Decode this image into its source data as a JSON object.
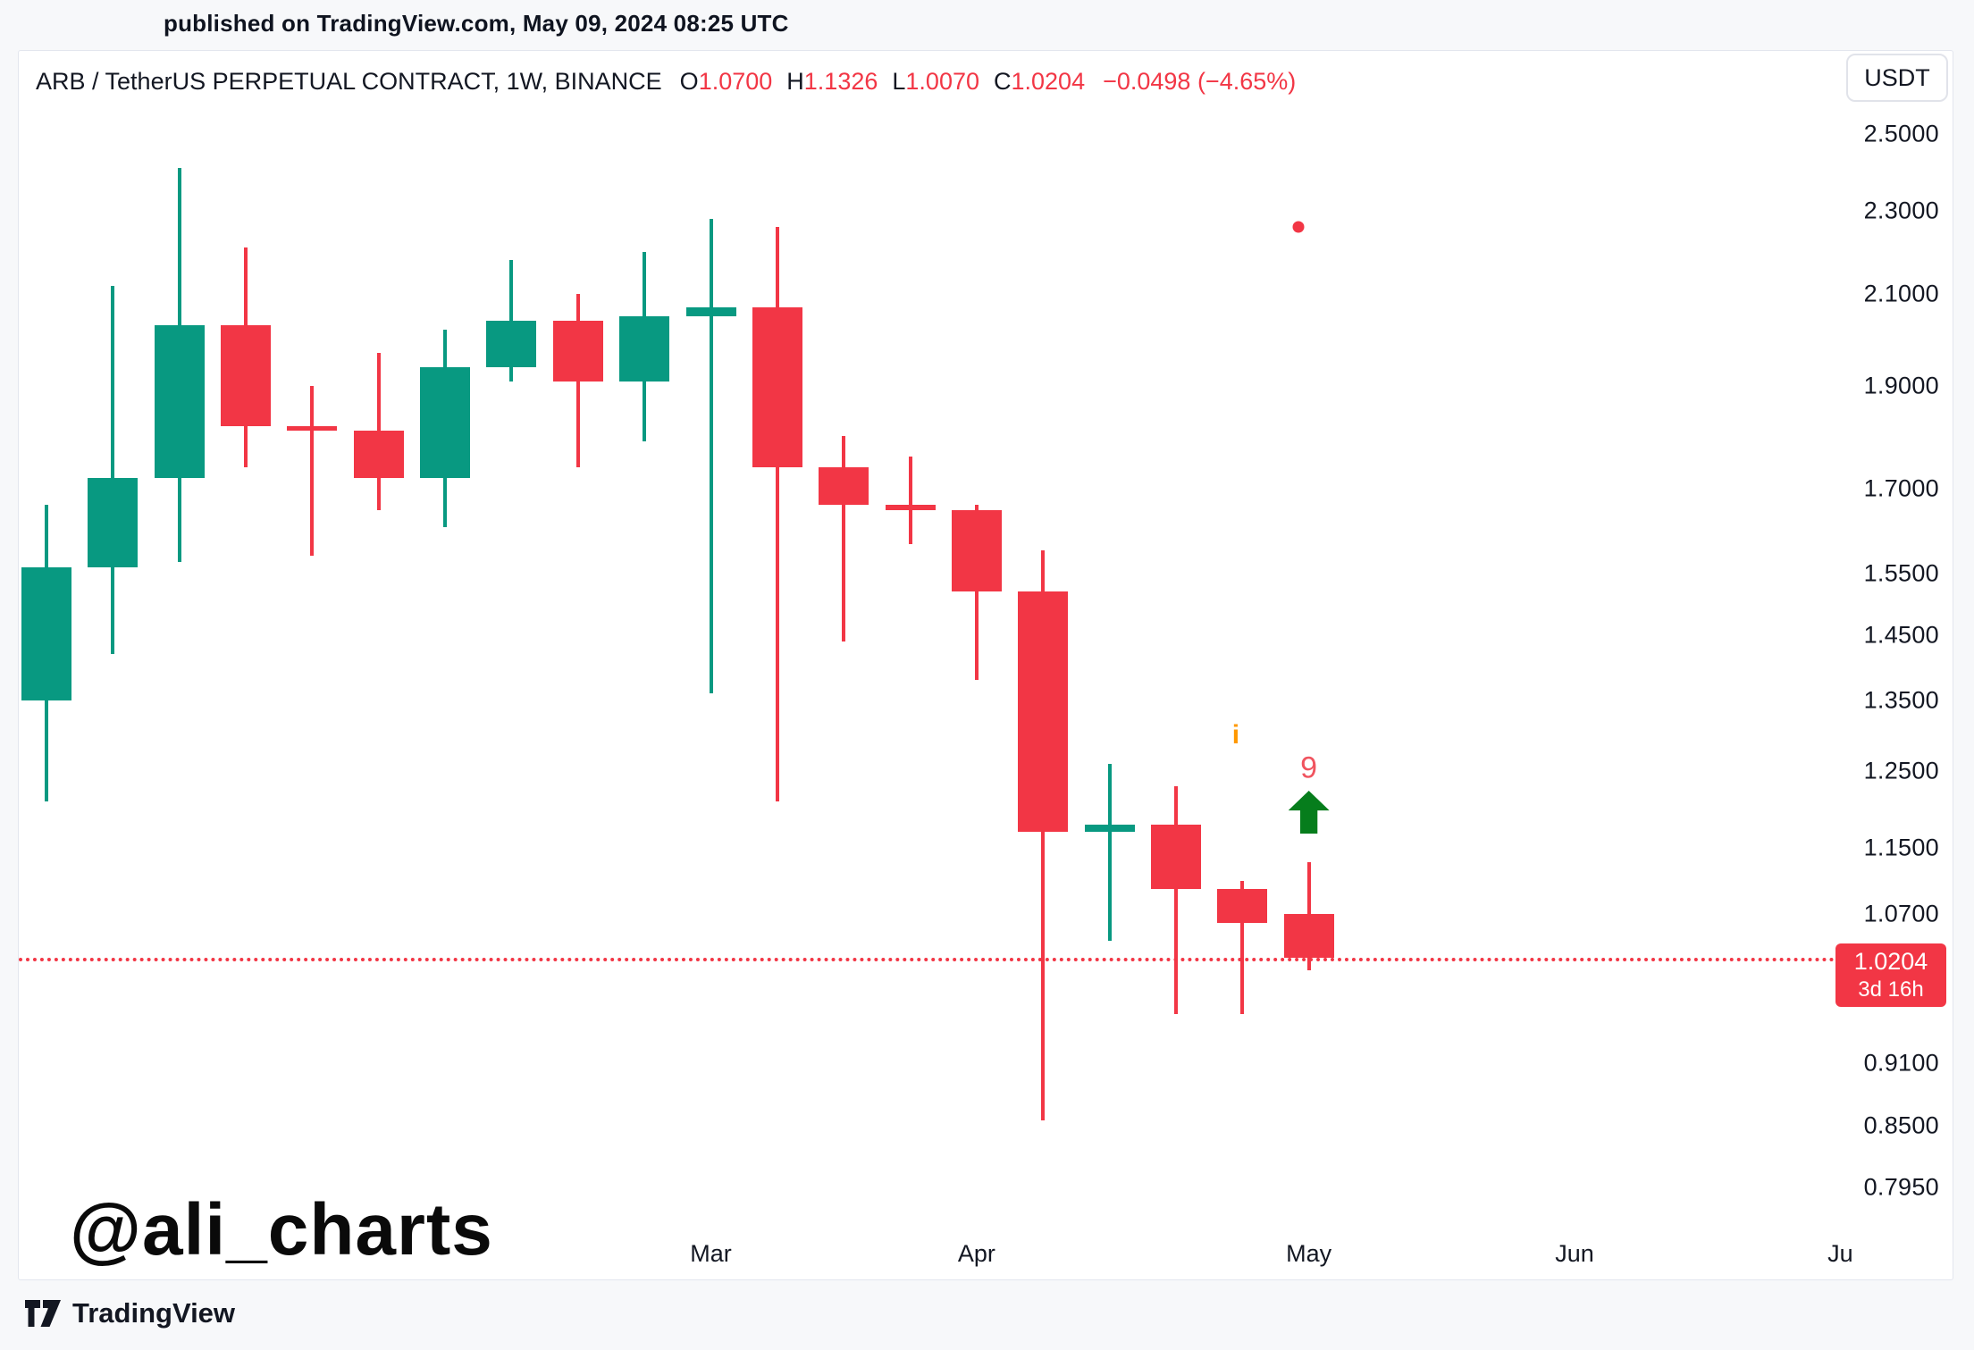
{
  "published_line": "published on TradingView.com, May 09, 2024 08:25 UTC",
  "header": {
    "symbol_title": "ARB / TetherUS PERPETUAL CONTRACT, 1W, BINANCE",
    "ohlc": {
      "o_label": "O",
      "o_value": "1.0700",
      "h_label": "H",
      "h_value": "1.1326",
      "l_label": "L",
      "l_value": "1.0070",
      "c_label": "C",
      "c_value": "1.0204"
    },
    "change_text": "−0.0498 (−4.65%)",
    "currency_button_label": "USDT"
  },
  "watermark_text": "@ali_charts",
  "footer": {
    "brand_name": "TradingView"
  },
  "price_axis": {
    "ticks": [
      {
        "label": "2.5000",
        "price": 2.5
      },
      {
        "label": "2.3000",
        "price": 2.3
      },
      {
        "label": "2.1000",
        "price": 2.1
      },
      {
        "label": "1.9000",
        "price": 1.9
      },
      {
        "label": "1.7000",
        "price": 1.7
      },
      {
        "label": "1.5500",
        "price": 1.55
      },
      {
        "label": "1.4500",
        "price": 1.45
      },
      {
        "label": "1.3500",
        "price": 1.35
      },
      {
        "label": "1.2500",
        "price": 1.25
      },
      {
        "label": "1.1500",
        "price": 1.15
      },
      {
        "label": "1.0700",
        "price": 1.07
      },
      {
        "label": "0.9100",
        "price": 0.91
      },
      {
        "label": "0.8500",
        "price": 0.85
      },
      {
        "label": "0.7950",
        "price": 0.795
      }
    ],
    "last_price_label": {
      "price_text": "1.0204",
      "countdown_text": "3d 16h",
      "price": 1.0204
    }
  },
  "time_axis": {
    "labels": [
      {
        "text": "Mar",
        "week": 10
      },
      {
        "text": "Apr",
        "week": 14
      },
      {
        "text": "May",
        "week": 19
      },
      {
        "text": "Jun",
        "week": 23
      },
      {
        "text": "Ju",
        "week": 27
      }
    ]
  },
  "chart_data": {
    "type": "candlestick",
    "scale": "log",
    "interval": "1W",
    "price_range_shown": [
      0.795,
      2.5
    ],
    "current_price_line": 1.0204,
    "candles": [
      {
        "o": 1.35,
        "h": 1.67,
        "l": 1.21,
        "c": 1.56
      },
      {
        "o": 1.56,
        "h": 2.12,
        "l": 1.42,
        "c": 1.72
      },
      {
        "o": 1.72,
        "h": 2.41,
        "l": 1.57,
        "c": 2.03
      },
      {
        "o": 2.03,
        "h": 2.21,
        "l": 1.74,
        "c": 1.82
      },
      {
        "o": 1.82,
        "h": 1.9,
        "l": 1.58,
        "c": 1.81
      },
      {
        "o": 1.81,
        "h": 1.97,
        "l": 1.66,
        "c": 1.72
      },
      {
        "o": 1.72,
        "h": 2.02,
        "l": 1.63,
        "c": 1.94
      },
      {
        "o": 1.94,
        "h": 2.18,
        "l": 1.91,
        "c": 2.04
      },
      {
        "o": 2.04,
        "h": 2.1,
        "l": 1.74,
        "c": 1.91
      },
      {
        "o": 1.91,
        "h": 2.2,
        "l": 1.79,
        "c": 2.05
      },
      {
        "o": 2.05,
        "h": 2.28,
        "l": 1.36,
        "c": 2.07
      },
      {
        "o": 2.07,
        "h": 2.26,
        "l": 1.21,
        "c": 1.74
      },
      {
        "o": 1.74,
        "h": 1.8,
        "l": 1.44,
        "c": 1.67
      },
      {
        "o": 1.67,
        "h": 1.76,
        "l": 1.6,
        "c": 1.66
      },
      {
        "o": 1.66,
        "h": 1.67,
        "l": 1.38,
        "c": 1.52
      },
      {
        "o": 1.52,
        "h": 1.59,
        "l": 0.855,
        "c": 1.17
      },
      {
        "o": 1.17,
        "h": 1.26,
        "l": 1.04,
        "c": 1.18
      },
      {
        "o": 1.18,
        "h": 1.23,
        "l": 0.96,
        "c": 1.1
      },
      {
        "o": 1.1,
        "h": 1.11,
        "l": 0.96,
        "c": 1.06
      },
      {
        "o": 1.07,
        "h": 1.1326,
        "l": 1.007,
        "c": 1.0204
      }
    ],
    "markers": {
      "info_label": {
        "text": "i",
        "week": 17.9,
        "price": 1.3
      },
      "count_label": {
        "text": "9",
        "week": 19,
        "price": 1.254
      },
      "up_arrow": {
        "week": 19,
        "price": 1.196
      },
      "dot": {
        "week": 18.85,
        "price": 2.26
      }
    }
  },
  "colors": {
    "up": "#089981",
    "down": "#f23645",
    "accent_red": "#f23645",
    "text": "#131722",
    "border": "#e3e6ee",
    "arrow_green": "#067d1c",
    "info_orange": "#ff9800",
    "count_red": "#f0545f"
  }
}
